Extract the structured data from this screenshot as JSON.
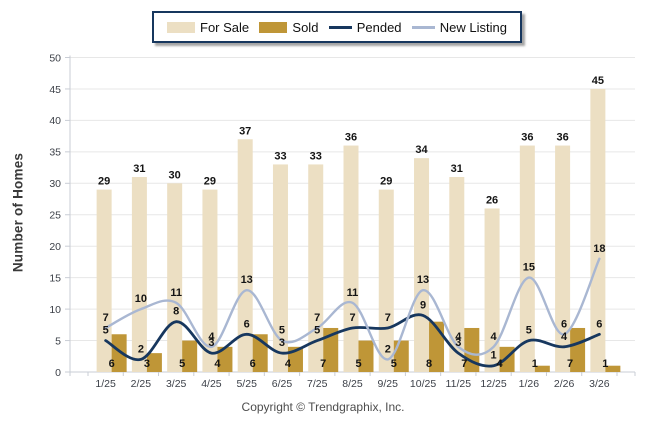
{
  "legend": {
    "items": [
      {
        "label": "For Sale",
        "kind": "bar"
      },
      {
        "label": "Sold",
        "kind": "bar"
      },
      {
        "label": "Pended",
        "kind": "line"
      },
      {
        "label": "New Listing",
        "kind": "line"
      }
    ]
  },
  "chart_data": {
    "type": "combo",
    "categories": [
      "1/25",
      "2/25",
      "3/25",
      "4/25",
      "5/25",
      "6/25",
      "7/25",
      "8/25",
      "9/25",
      "10/25",
      "11/25",
      "12/25",
      "1/26",
      "2/26",
      "3/26"
    ],
    "series": [
      {
        "name": "For Sale",
        "kind": "bar",
        "color": "#ecdfc3",
        "values": [
          29,
          31,
          30,
          29,
          37,
          33,
          33,
          36,
          29,
          34,
          31,
          26,
          36,
          36,
          45
        ]
      },
      {
        "name": "Sold",
        "kind": "bar",
        "color": "#bf9637",
        "values": [
          6,
          3,
          5,
          4,
          6,
          4,
          7,
          5,
          5,
          8,
          7,
          4,
          1,
          7,
          1
        ]
      },
      {
        "name": "Pended",
        "kind": "line",
        "color": "#17375e",
        "values": [
          5,
          2,
          8,
          3,
          6,
          3,
          5,
          7,
          7,
          9,
          3,
          1,
          5,
          4,
          6
        ]
      },
      {
        "name": "New Listing",
        "kind": "line",
        "color": "#a9b7d2",
        "values": [
          7,
          10,
          11,
          4,
          13,
          5,
          7,
          11,
          2,
          13,
          4,
          4,
          15,
          6,
          18
        ]
      }
    ],
    "title": "",
    "xlabel": "",
    "ylabel": "Number of Homes",
    "ylim": [
      0,
      50
    ],
    "ytick_step": 5,
    "grid": true,
    "legend_position": "top"
  },
  "colors": {
    "legend_border": "#17375e",
    "grid": "#e7e7e7",
    "axis": "#c9cdd5",
    "axis_text": "#3c4048",
    "value_label": "#141414"
  },
  "footer": {
    "copyright": "Copyright © Trendgraphix, Inc."
  }
}
